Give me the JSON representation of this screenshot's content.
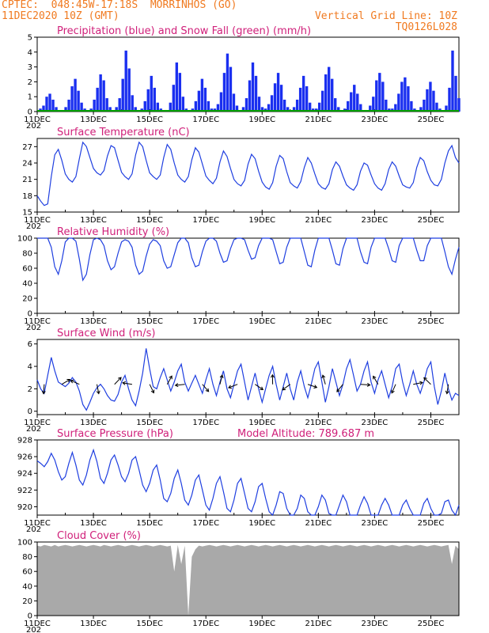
{
  "header": {
    "line1": "CPTEC:  048:45W-17:18S  MORRINHOS (GO)",
    "line2": "11DEC2020 10Z (GMT)",
    "grid_note": "Vertical Grid Line: 10Z",
    "run_id": "TQ0126L028"
  },
  "colors": {
    "title": "#d0207a",
    "header": "#f07a20",
    "series": "#1f3fe0",
    "precip": "#1a2ff0",
    "snow": "#00a000",
    "cloud": "#a9a9a9"
  },
  "x_ticks": [
    "11DEC",
    "13DEC",
    "15DEC",
    "17DEC",
    "19DEC",
    "21DEC",
    "23DEC",
    "25DEC"
  ],
  "x_first_suffix": "202",
  "chart_data": [
    {
      "id": "precip",
      "type": "bar",
      "title": "Precipitation (blue) and Snow Fall (green) (mm/h)",
      "ylim": [
        0,
        5
      ],
      "yticks": [
        0,
        1,
        2,
        3,
        4,
        5
      ],
      "days": [
        11,
        26
      ],
      "step_hours": 3,
      "values": [
        0,
        0.2,
        0.4,
        1.0,
        1.2,
        0.8,
        0.3,
        0,
        0.1,
        0.3,
        0.8,
        1.7,
        2.2,
        1.4,
        0.6,
        0.2,
        0,
        0.2,
        0.8,
        1.6,
        2.5,
        2.1,
        0.9,
        0.3,
        0,
        0.3,
        0.9,
        2.2,
        4.1,
        2.9,
        1.1,
        0.3,
        0.1,
        0.2,
        0.7,
        1.5,
        2.4,
        1.6,
        0.6,
        0.2,
        0,
        0.1,
        0.6,
        1.8,
        3.3,
        2.6,
        1.0,
        0.2,
        0,
        0.2,
        0.7,
        1.4,
        2.2,
        1.6,
        0.7,
        0.2,
        0.2,
        0.5,
        1.3,
        2.6,
        3.9,
        3.0,
        1.2,
        0.4,
        0.1,
        0.3,
        0.9,
        2.1,
        3.3,
        2.4,
        1.0,
        0.3,
        0.2,
        0.5,
        1.1,
        1.9,
        2.6,
        1.8,
        0.8,
        0.3,
        0.1,
        0.3,
        0.8,
        1.6,
        2.4,
        1.7,
        0.6,
        0.2,
        0.2,
        0.6,
        1.4,
        2.5,
        3.0,
        2.2,
        0.9,
        0.3,
        0.1,
        0.2,
        0.7,
        1.3,
        1.8,
        1.2,
        0.5,
        0.1,
        0.1,
        0.4,
        1.0,
        2.1,
        2.6,
        2.0,
        0.8,
        0.2,
        0.2,
        0.5,
        1.2,
        2.0,
        2.3,
        1.7,
        0.7,
        0.2,
        0.1,
        0.3,
        0.8,
        1.5,
        2.0,
        1.4,
        0.6,
        0.2,
        0.1,
        0.4,
        1.6,
        4.1,
        2.4,
        0.9
      ]
    },
    {
      "id": "temp",
      "type": "line",
      "title": "Surface Temperature (nC)",
      "ylim": [
        15,
        28.5
      ],
      "yticks": [
        15,
        18,
        21,
        24,
        27
      ],
      "days": [
        11,
        26
      ],
      "step_hours": 3,
      "values": [
        18.0,
        17.0,
        16.2,
        16.5,
        21.5,
        25.5,
        26.5,
        24.5,
        22.0,
        21.0,
        20.5,
        21.5,
        24.8,
        27.8,
        27.0,
        25.0,
        23.0,
        22.2,
        21.8,
        22.6,
        25.3,
        27.2,
        26.8,
        24.5,
        22.3,
        21.5,
        21.0,
        22.0,
        25.5,
        27.8,
        27.0,
        24.5,
        22.2,
        21.5,
        21.0,
        21.8,
        25.0,
        27.4,
        26.5,
        24.0,
        21.8,
        21.0,
        20.5,
        21.5,
        24.6,
        26.8,
        26.0,
        23.8,
        21.6,
        20.8,
        20.2,
        21.2,
        24.2,
        26.2,
        25.2,
        23.0,
        21.0,
        20.2,
        19.8,
        20.8,
        23.8,
        25.6,
        24.8,
        22.5,
        20.5,
        19.6,
        19.2,
        20.4,
        23.4,
        25.4,
        24.8,
        22.4,
        20.4,
        19.8,
        19.4,
        20.6,
        23.2,
        25.0,
        24.0,
        22.0,
        20.2,
        19.5,
        19.2,
        20.2,
        22.8,
        24.2,
        23.4,
        21.6,
        20.0,
        19.4,
        19.0,
        20.0,
        22.5,
        24.0,
        23.6,
        21.8,
        20.2,
        19.4,
        19.0,
        20.2,
        22.8,
        24.2,
        23.4,
        21.6,
        20.0,
        19.6,
        19.4,
        20.4,
        23.2,
        25.0,
        24.4,
        22.4,
        20.8,
        20.0,
        19.8,
        21.0,
        24.0,
        26.2,
        27.2,
        25.0,
        24.0
      ]
    },
    {
      "id": "rh",
      "type": "line",
      "title": "Relative Humidity (%)",
      "ylim": [
        0,
        100
      ],
      "yticks": [
        0,
        20,
        40,
        60,
        80,
        100
      ],
      "days": [
        11,
        26
      ],
      "step_hours": 3,
      "values": [
        100,
        100,
        100,
        100,
        88,
        62,
        52,
        70,
        95,
        100,
        100,
        96,
        72,
        44,
        52,
        78,
        98,
        100,
        98,
        90,
        70,
        58,
        62,
        80,
        95,
        98,
        96,
        88,
        64,
        52,
        56,
        76,
        92,
        98,
        96,
        90,
        70,
        60,
        62,
        78,
        94,
        100,
        100,
        94,
        74,
        62,
        64,
        82,
        96,
        100,
        100,
        96,
        80,
        68,
        70,
        86,
        98,
        100,
        100,
        98,
        84,
        72,
        74,
        90,
        100,
        100,
        100,
        98,
        82,
        66,
        68,
        88,
        100,
        100,
        100,
        100,
        82,
        64,
        62,
        84,
        100,
        100,
        100,
        100,
        84,
        66,
        64,
        86,
        100,
        100,
        100,
        100,
        82,
        68,
        66,
        88,
        100,
        100,
        100,
        100,
        86,
        70,
        68,
        90,
        100,
        100,
        100,
        100,
        84,
        70,
        70,
        90,
        100,
        100,
        100,
        100,
        82,
        62,
        52,
        72,
        88
      ]
    },
    {
      "id": "wind",
      "type": "line",
      "title": "Surface Wind (m/s)",
      "ylim": [
        -0.3,
        6.4
      ],
      "yticks": [
        0,
        2,
        4,
        6
      ],
      "days": [
        11,
        26
      ],
      "step_hours": 3,
      "values": [
        2.8,
        2.0,
        1.6,
        3.2,
        4.8,
        3.6,
        2.6,
        2.4,
        2.2,
        2.5,
        3.0,
        2.6,
        1.8,
        0.6,
        0.1,
        0.8,
        1.6,
        2.1,
        2.4,
        2.0,
        1.4,
        1.0,
        0.9,
        1.5,
        2.6,
        3.2,
        2.0,
        1.0,
        0.5,
        1.8,
        3.4,
        5.6,
        3.8,
        2.2,
        2.0,
        3.0,
        3.8,
        2.8,
        1.8,
        2.6,
        3.6,
        4.2,
        2.6,
        1.8,
        2.5,
        3.2,
        2.4,
        1.6,
        2.8,
        3.8,
        2.4,
        1.4,
        2.6,
        3.6,
        2.0,
        1.2,
        2.4,
        3.6,
        4.2,
        2.6,
        1.0,
        2.2,
        3.4,
        2.0,
        0.8,
        2.0,
        3.2,
        4.0,
        2.4,
        1.0,
        2.2,
        3.4,
        2.0,
        1.0,
        2.6,
        3.6,
        2.2,
        1.2,
        2.4,
        3.8,
        4.4,
        2.6,
        0.8,
        2.2,
        3.8,
        2.6,
        1.4,
        2.4,
        3.8,
        4.6,
        3.2,
        1.8,
        2.4,
        3.6,
        4.4,
        2.6,
        1.6,
        2.8,
        3.6,
        2.4,
        1.2,
        2.2,
        3.8,
        4.2,
        2.6,
        1.4,
        2.4,
        3.6,
        2.4,
        1.6,
        2.6,
        3.8,
        4.4,
        2.2,
        0.6,
        1.8,
        3.4,
        2.0,
        1.0,
        1.6,
        1.4
      ]
    },
    {
      "id": "pres",
      "type": "line",
      "title": "Surface Pressure (hPa)",
      "note": "Model Altitude: 789.687 m",
      "ylim": [
        919,
        928
      ],
      "yticks": [
        920,
        922,
        924,
        926,
        928
      ],
      "days": [
        11,
        26
      ],
      "step_hours": 3,
      "values": [
        925.5,
        925.2,
        924.8,
        925.4,
        926.4,
        925.6,
        924.2,
        923.2,
        923.6,
        925.2,
        926.5,
        925.0,
        923.2,
        922.6,
        923.8,
        925.6,
        926.8,
        925.4,
        923.4,
        922.8,
        924.0,
        925.6,
        926.2,
        925.0,
        923.6,
        923.0,
        924.0,
        925.6,
        926.0,
        924.4,
        922.6,
        921.8,
        922.8,
        924.4,
        925.0,
        923.2,
        921.0,
        920.6,
        921.6,
        923.4,
        924.4,
        922.8,
        920.8,
        920.2,
        921.4,
        923.2,
        923.8,
        922.0,
        920.2,
        919.6,
        921.0,
        922.8,
        923.6,
        921.8,
        919.8,
        919.4,
        920.8,
        922.8,
        923.4,
        921.6,
        919.8,
        919.4,
        920.6,
        922.4,
        922.8,
        921.0,
        919.4,
        919.0,
        920.2,
        921.8,
        921.6,
        919.8,
        918.8,
        918.6,
        919.8,
        921.4,
        921.0,
        919.4,
        918.6,
        918.8,
        920.0,
        921.4,
        920.8,
        919.2,
        918.6,
        918.9,
        920.2,
        921.4,
        920.6,
        919.0,
        918.4,
        918.9,
        920.2,
        921.2,
        920.4,
        918.9,
        918.4,
        919.0,
        920.2,
        921.0,
        920.2,
        918.8,
        918.4,
        919.0,
        920.2,
        920.8,
        919.8,
        918.6,
        918.4,
        919.0,
        920.4,
        921.0,
        919.8,
        918.6,
        918.6,
        919.2,
        920.6,
        920.8,
        919.6,
        918.8,
        920.2
      ]
    },
    {
      "id": "cloud",
      "type": "area",
      "title": "Cloud Cover (%)",
      "ylim": [
        0,
        100
      ],
      "yticks": [
        0,
        20,
        40,
        60,
        80,
        100
      ],
      "days": [
        11,
        26
      ],
      "step_hours": 3,
      "values": [
        95,
        94,
        96,
        95,
        94,
        96,
        94,
        95,
        96,
        95,
        94,
        95,
        96,
        95,
        94,
        95,
        96,
        95,
        94,
        96,
        95,
        94,
        95,
        96,
        95,
        94,
        95,
        96,
        95,
        94,
        95,
        96,
        95,
        94,
        95,
        96,
        95,
        94,
        95,
        60,
        96,
        70,
        95,
        0,
        80,
        90,
        95,
        94,
        95,
        96,
        95,
        94,
        95,
        96,
        95,
        94,
        95,
        96,
        95,
        94,
        95,
        96,
        95,
        94,
        95,
        96,
        95,
        94,
        95,
        96,
        95,
        94,
        95,
        96,
        95,
        94,
        95,
        96,
        95,
        94,
        95,
        96,
        95,
        94,
        95,
        96,
        95,
        94,
        95,
        96,
        95,
        94,
        95,
        96,
        95,
        94,
        95,
        96,
        95,
        94,
        95,
        96,
        95,
        94,
        95,
        96,
        95,
        94,
        95,
        96,
        95,
        94,
        95,
        96,
        95,
        94,
        95,
        96,
        70,
        95,
        90
      ]
    }
  ]
}
